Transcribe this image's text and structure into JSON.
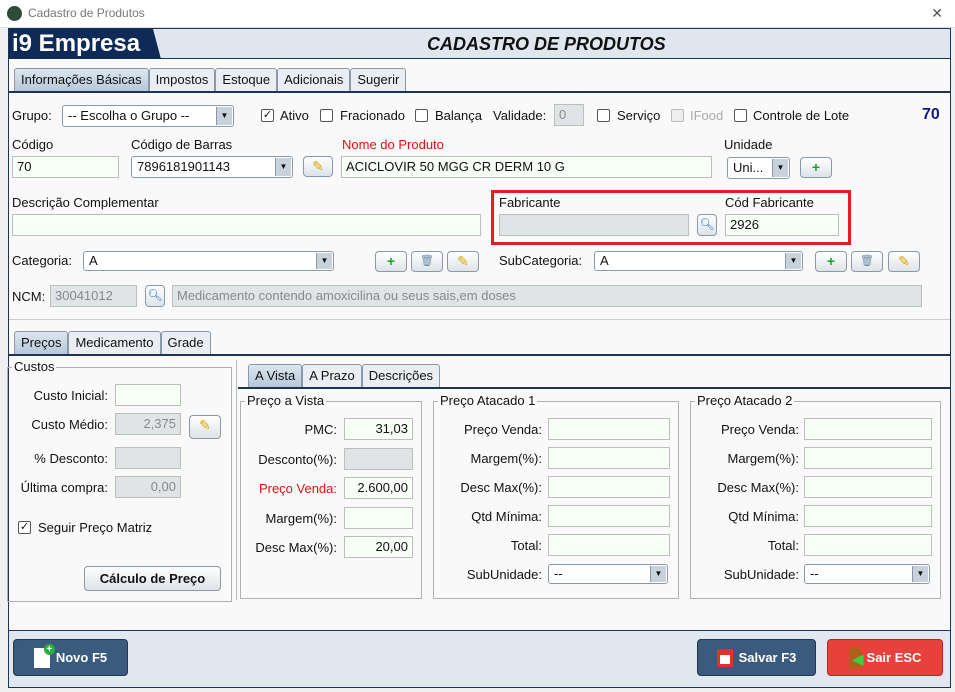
{
  "window": {
    "title": "Cadastro de Produtos",
    "close": "✕"
  },
  "header": {
    "logo": "i9 Empresa",
    "title": "CADASTRO DE PRODUTOS"
  },
  "tabs": [
    "Informações Básicas",
    "Impostos",
    "Estoque",
    "Adicionais",
    "Sugerir"
  ],
  "basic": {
    "grupo_label": "Grupo:",
    "grupo_value": "-- Escolha o Grupo --",
    "ativo": "Ativo",
    "fracionado": "Fracionado",
    "balanca": "Balança",
    "validade_label": "Validade:",
    "validade": "0",
    "servico": "Serviço",
    "ifood": "IFood",
    "controle_lote": "Controle de Lote",
    "id": "70",
    "codigo_label": "Código",
    "codigo": "70",
    "barras_label": "Código de Barras",
    "barras": "7896181901143",
    "nome_label": "Nome do Produto",
    "nome": "ACICLOVIR 50 MGG CR DERM 10 G",
    "unidade_label": "Unidade",
    "unidade": "Uni...",
    "desc_label": "Descrição Complementar",
    "desc": "",
    "fabricante_label": "Fabricante",
    "fabricante": "",
    "cod_fab_label": "Cód Fabricante",
    "cod_fab": "2926",
    "categoria_label": "Categoria:",
    "categoria": "A",
    "subcategoria_label": "SubCategoria:",
    "subcategoria": "A",
    "ncm_label": "NCM:",
    "ncm": "30041012",
    "ncm_desc": "Medicamento contendo amoxicilina ou seus sais,em doses"
  },
  "subtabs": [
    "Preços",
    "Medicamento",
    "Grade"
  ],
  "custos": {
    "title": "Custos",
    "inicial_label": "Custo Inicial:",
    "inicial": "",
    "medio_label": "Custo Médio:",
    "medio": "2,375",
    "desconto_label": "% Desconto:",
    "desconto": "",
    "ultima_label": "Última compra:",
    "ultima": "0,00",
    "seguir": "Seguir Preço Matriz",
    "calculo": "Cálculo de Preço"
  },
  "pricetabs": [
    "A Vista",
    "A Prazo",
    "Descrições"
  ],
  "vista": {
    "title": "Preço a Vista",
    "rows": [
      {
        "label": "PMC:",
        "value": "31,03"
      },
      {
        "label": "Desconto(%):",
        "value": ""
      },
      {
        "label": "Preço Venda:",
        "value": "2.600,00"
      },
      {
        "label": "Margem(%):",
        "value": ""
      },
      {
        "label": "Desc Max(%):",
        "value": "20,00"
      }
    ]
  },
  "atacado1": {
    "title": "Preço Atacado 1",
    "rows": [
      "Preço Venda:",
      "Margem(%):",
      "Desc Max(%):",
      "Qtd Mínima:",
      "Total:"
    ],
    "sub_label": "SubUnidade:",
    "sub": "--"
  },
  "atacado2": {
    "title": "Preço Atacado 2",
    "rows": [
      "Preço Venda:",
      "Margem(%):",
      "Desc Max(%):",
      "Qtd Mínima:",
      "Total:"
    ],
    "sub_label": "SubUnidade:",
    "sub": "--"
  },
  "footer": {
    "novo": "Novo F5",
    "salvar": "Salvar F3",
    "sair": "Sair ESC"
  },
  "colors": {
    "accent": "#0e2a57",
    "required": "#e01010",
    "highlight": "#e02020",
    "exit": "#e8403a",
    "button": "#3a5a7e"
  }
}
